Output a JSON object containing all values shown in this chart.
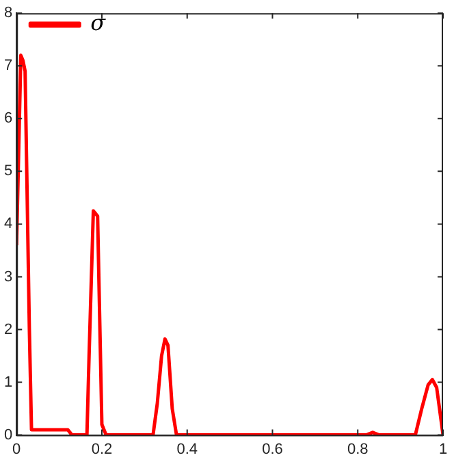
{
  "chart_data": {
    "type": "line",
    "x": [
      0,
      0.01,
      0.015,
      0.02,
      0.03,
      0.035,
      0.12,
      0.13,
      0.165,
      0.17,
      0.18,
      0.19,
      0.2,
      0.21,
      0.32,
      0.33,
      0.34,
      0.348,
      0.355,
      0.365,
      0.375,
      0.82,
      0.835,
      0.85,
      0.935,
      0.95,
      0.965,
      0.975,
      0.985,
      1
    ],
    "series": [
      {
        "name": "σ",
        "color": "#ff0000",
        "values": [
          3.6,
          7.2,
          7.1,
          6.9,
          2,
          0.1,
          0.1,
          0,
          0,
          1.5,
          4.25,
          4.15,
          0.2,
          0,
          0,
          0.6,
          1.5,
          1.82,
          1.7,
          0.5,
          0,
          0,
          0.05,
          0,
          0,
          0.5,
          0.95,
          1.05,
          0.9,
          0
        ]
      }
    ],
    "xlim": [
      0,
      1
    ],
    "xticks": [
      0,
      0.2,
      0.4,
      0.6,
      0.8,
      1
    ],
    "ylim": [
      0,
      8
    ],
    "yticks": [
      0,
      1,
      2,
      3,
      4,
      5,
      6,
      7,
      8
    ],
    "grid": false,
    "legend": "top left",
    "marker": "none",
    "line_style": "solid"
  }
}
